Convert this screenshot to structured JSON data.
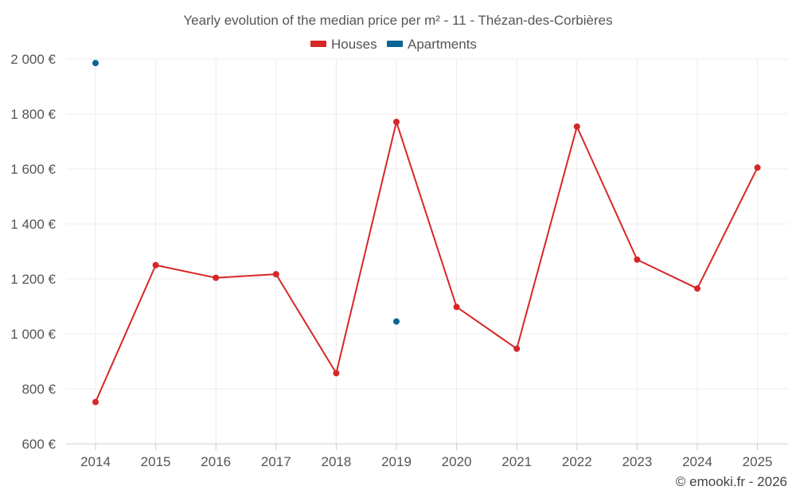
{
  "chart_data": {
    "type": "line",
    "title": "Yearly evolution of the median price per m² - 11 - Thézan-des-Corbières",
    "categories": [
      "2014",
      "2015",
      "2016",
      "2017",
      "2018",
      "2019",
      "2020",
      "2021",
      "2022",
      "2023",
      "2024",
      "2025"
    ],
    "series": [
      {
        "name": "Houses",
        "color": "#d62728",
        "values": [
          752,
          1250,
          1204,
          1217,
          857,
          1771,
          1098,
          946,
          1754,
          1270,
          1165,
          1605
        ]
      },
      {
        "name": "Apartments",
        "color": "#0a6495",
        "values": [
          1985,
          null,
          null,
          null,
          null,
          1045,
          null,
          null,
          null,
          null,
          null,
          null
        ]
      }
    ],
    "ylim": [
      600,
      2000
    ],
    "yticks": [
      600,
      800,
      1000,
      1200,
      1400,
      1600,
      1800,
      2000
    ],
    "ytick_labels": [
      "600 €",
      "800 €",
      "1 000 €",
      "1 200 €",
      "1 400 €",
      "1 600 €",
      "1 800 €",
      "2 000 €"
    ],
    "xlabel": "",
    "ylabel": "",
    "grid": true,
    "legend_position": "top-center"
  },
  "credit": "© emooki.fr - 2026"
}
